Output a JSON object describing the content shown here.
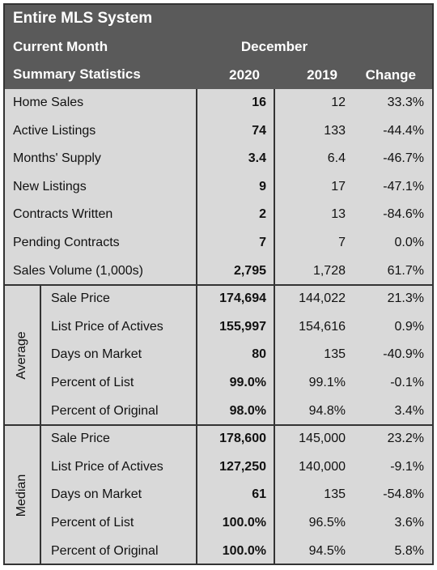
{
  "header": {
    "title": "Entire MLS System",
    "period_label": "Current Month",
    "month": "December",
    "stats_label": "Summary Statistics",
    "columns": [
      "2020",
      "2019",
      "Change"
    ]
  },
  "rows": [
    {
      "label": "Home Sales",
      "values": [
        "16",
        "12",
        "33.3%"
      ]
    },
    {
      "label": "Active Listings",
      "values": [
        "74",
        "133",
        "-44.4%"
      ]
    },
    {
      "label": "Months' Supply",
      "values": [
        "3.4",
        "6.4",
        "-46.7%"
      ]
    },
    {
      "label": "New Listings",
      "values": [
        "9",
        "17",
        "-47.1%"
      ]
    },
    {
      "label": "Contracts Written",
      "values": [
        "2",
        "13",
        "-84.6%"
      ]
    },
    {
      "label": "Pending Contracts",
      "values": [
        "7",
        "7",
        "0.0%"
      ]
    },
    {
      "label": "Sales Volume (1,000s)",
      "values": [
        "2,795",
        "1,728",
        "61.7%"
      ]
    }
  ],
  "groups": [
    {
      "label": "Average",
      "rows": [
        {
          "label": "Sale Price",
          "values": [
            "174,694",
            "144,022",
            "21.3%"
          ]
        },
        {
          "label": "List Price of Actives",
          "values": [
            "155,997",
            "154,616",
            "0.9%"
          ]
        },
        {
          "label": "Days on Market",
          "values": [
            "80",
            "135",
            "-40.9%"
          ]
        },
        {
          "label": "Percent of List",
          "values": [
            "99.0%",
            "99.1%",
            "-0.1%"
          ]
        },
        {
          "label": "Percent of Original",
          "values": [
            "98.0%",
            "94.8%",
            "3.4%"
          ]
        }
      ]
    },
    {
      "label": "Median",
      "rows": [
        {
          "label": "Sale Price",
          "values": [
            "178,600",
            "145,000",
            "23.2%"
          ]
        },
        {
          "label": "List Price of Actives",
          "values": [
            "127,250",
            "140,000",
            "-9.1%"
          ]
        },
        {
          "label": "Days on Market",
          "values": [
            "61",
            "135",
            "-54.8%"
          ]
        },
        {
          "label": "Percent of List",
          "values": [
            "100.0%",
            "96.5%",
            "3.6%"
          ]
        },
        {
          "label": "Percent of Original",
          "values": [
            "100.0%",
            "94.5%",
            "5.8%"
          ]
        }
      ]
    }
  ]
}
